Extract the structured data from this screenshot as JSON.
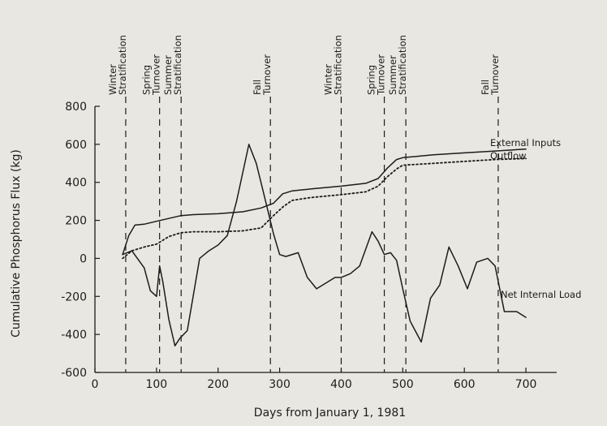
{
  "chart_data": {
    "type": "line",
    "title": "",
    "xlabel": "Days from January 1, 1981",
    "ylabel": "Cumulative Phosphorus Flux (kg)",
    "xlim": [
      0,
      750
    ],
    "ylim": [
      -600,
      800
    ],
    "xticks": [
      0,
      100,
      200,
      300,
      400,
      500,
      600,
      700
    ],
    "yticks": [
      -600,
      -400,
      -200,
      0,
      200,
      400,
      600,
      800
    ],
    "grid": false,
    "phases": [
      {
        "label": "Winter Stratification",
        "x": 50
      },
      {
        "label": "Spring Turnover",
        "x": 105
      },
      {
        "label": "Summer Stratification",
        "x": 140
      },
      {
        "label": "Fall Turnover",
        "x": 285
      },
      {
        "label": "Winter Stratification",
        "x": 400
      },
      {
        "label": "Spring Turnover",
        "x": 470
      },
      {
        "label": "Summer Stratification",
        "x": 505
      },
      {
        "label": "Fall Turnover",
        "x": 655
      }
    ],
    "series": [
      {
        "name": "External Inputs",
        "style": "solid",
        "x": [
          45,
          55,
          65,
          80,
          100,
          120,
          140,
          160,
          200,
          240,
          270,
          290,
          305,
          320,
          350,
          400,
          440,
          460,
          475,
          490,
          500,
          550,
          600,
          650,
          700
        ],
        "y": [
          20,
          120,
          175,
          180,
          195,
          210,
          225,
          230,
          235,
          245,
          265,
          290,
          340,
          355,
          365,
          380,
          395,
          420,
          475,
          520,
          530,
          545,
          555,
          565,
          575
        ]
      },
      {
        "name": "Outflow",
        "style": "dotted",
        "x": [
          45,
          60,
          80,
          100,
          120,
          140,
          160,
          200,
          240,
          270,
          290,
          305,
          320,
          350,
          400,
          440,
          460,
          475,
          490,
          500,
          550,
          600,
          650,
          700
        ],
        "y": [
          0,
          40,
          60,
          75,
          115,
          135,
          140,
          140,
          145,
          160,
          225,
          270,
          305,
          320,
          335,
          350,
          380,
          430,
          470,
          490,
          500,
          510,
          520,
          525
        ]
      },
      {
        "name": "Net Internal Load",
        "style": "solid",
        "x": [
          45,
          60,
          80,
          90,
          100,
          105,
          110,
          120,
          130,
          138,
          150,
          170,
          185,
          200,
          215,
          230,
          250,
          262,
          275,
          290,
          300,
          310,
          330,
          345,
          360,
          375,
          390,
          400,
          415,
          430,
          450,
          460,
          470,
          480,
          490,
          500,
          512,
          530,
          545,
          560,
          575,
          590,
          605,
          620,
          638,
          650,
          665,
          685,
          700
        ],
        "y": [
          20,
          40,
          -50,
          -170,
          -200,
          -40,
          -120,
          -320,
          -460,
          -420,
          -380,
          0,
          40,
          70,
          120,
          300,
          600,
          500,
          330,
          130,
          20,
          10,
          30,
          -100,
          -160,
          -130,
          -100,
          -100,
          -80,
          -40,
          140,
          90,
          20,
          30,
          -10,
          -160,
          -330,
          -440,
          -210,
          -140,
          60,
          -40,
          -160,
          -20,
          0,
          -40,
          -280,
          -280,
          -310
        ]
      }
    ],
    "annotations": [
      "External Inputs",
      "Outflow",
      "Net Internal Load"
    ]
  }
}
